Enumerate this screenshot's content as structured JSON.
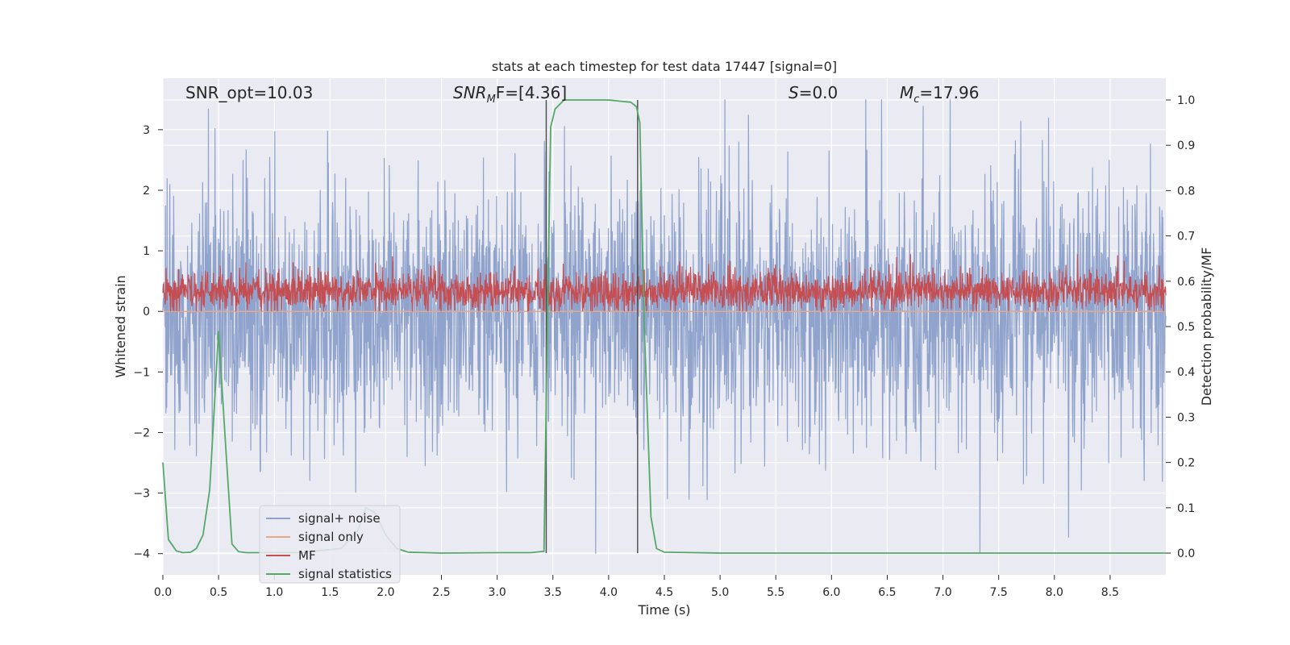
{
  "chart_data": {
    "type": "line",
    "title": "stats at each timestep for test data 17447 [signal=0]",
    "xlabel": "Time (s)",
    "ylabel": "Whitened strain",
    "y2label": "Detection probability/MF",
    "xlim": [
      0,
      9.0
    ],
    "ylim": [
      -4.35,
      3.85
    ],
    "y2lim": [
      -0.048,
      1.048
    ],
    "xticks": [
      "0.0",
      "0.5",
      "1.0",
      "1.5",
      "2.0",
      "2.5",
      "3.0",
      "3.5",
      "4.0",
      "4.5",
      "5.0",
      "5.5",
      "6.0",
      "6.5",
      "7.0",
      "7.5",
      "8.0",
      "8.5"
    ],
    "yticks": [
      "−4",
      "−3",
      "−2",
      "−1",
      "0",
      "1",
      "2",
      "3"
    ],
    "y2ticks": [
      "0.0",
      "0.1",
      "0.2",
      "0.3",
      "0.4",
      "0.5",
      "0.6",
      "0.7",
      "0.8",
      "0.9",
      "1.0"
    ],
    "grid": true,
    "legend_position": "lower-left",
    "annotations": {
      "snr_opt": "SNR_opt=10.03",
      "snr_mf_main": "SNR",
      "snr_mf_sub": "M",
      "snr_mf_rest": "F=[4.36]",
      "s_main": "S",
      "s_rest": "=0.0",
      "mc_main": "M",
      "mc_sub": "c",
      "mc_rest": "=17.96"
    },
    "series": [
      {
        "name": "signal+ noise",
        "color": "#8fa3cc",
        "axis": "left",
        "approx_range": [
          -4.0,
          3.5
        ]
      },
      {
        "name": "signal only",
        "color": "#e8a68a",
        "axis": "left",
        "values": 0
      },
      {
        "name": "MF",
        "color": "#c44e52",
        "axis": "left",
        "approx_range": [
          0.0,
          0.95
        ]
      },
      {
        "name": "signal statistics",
        "color": "#55a868",
        "axis": "right",
        "x": [
          0.0,
          0.05,
          0.12,
          0.18,
          0.25,
          0.3,
          0.36,
          0.42,
          0.5,
          0.56,
          0.62,
          0.68,
          0.75,
          0.9,
          1.2,
          1.6,
          1.75,
          1.82,
          1.9,
          2.0,
          2.1,
          2.2,
          2.5,
          3.0,
          3.3,
          3.42,
          3.45,
          3.48,
          3.52,
          3.6,
          4.0,
          4.2,
          4.25,
          4.28,
          4.32,
          4.38,
          4.43,
          4.5,
          5.0,
          6.0,
          7.0,
          8.0,
          9.0
        ],
        "y": [
          0.2,
          0.03,
          0.005,
          0.001,
          0.002,
          0.01,
          0.04,
          0.14,
          0.49,
          0.25,
          0.02,
          0.003,
          0.001,
          0.001,
          0.001,
          0.01,
          0.05,
          0.1,
          0.09,
          0.04,
          0.01,
          0.002,
          0.0,
          0.001,
          0.001,
          0.004,
          0.5,
          0.94,
          0.98,
          1.0,
          1.0,
          0.995,
          0.985,
          0.95,
          0.5,
          0.08,
          0.01,
          0.002,
          0.0,
          0.0,
          0.0,
          0.0,
          0.0
        ]
      }
    ],
    "vlines_x": [
      3.44,
      4.26
    ]
  }
}
